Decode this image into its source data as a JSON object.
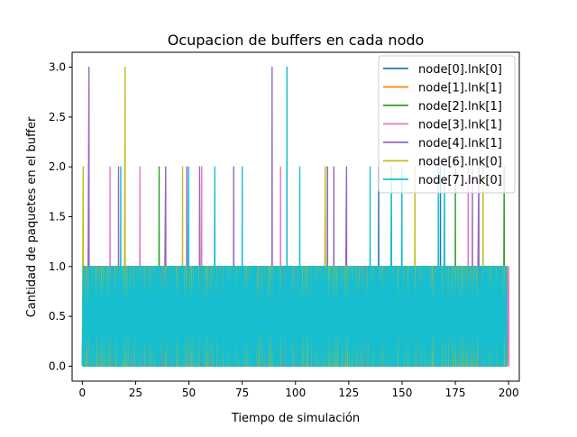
{
  "chart_data": {
    "type": "line",
    "title": "Ocupacion de buffers en cada nodo",
    "xlabel": "Tiempo de simulación",
    "ylabel": "Cantidad de paquetes en el buffer",
    "xlim": [
      -4.8,
      205
    ],
    "ylim": [
      -0.15,
      3.15
    ],
    "xticks": [
      0,
      25,
      50,
      75,
      100,
      125,
      150,
      175,
      200
    ],
    "xtick_labels": [
      "0",
      "25",
      "50",
      "75",
      "100",
      "125",
      "150",
      "175",
      "200"
    ],
    "yticks": [
      0.0,
      0.5,
      1.0,
      1.5,
      2.0,
      2.5,
      3.0
    ],
    "ytick_labels": [
      "0.0",
      "0.5",
      "1.0",
      "1.5",
      "2.0",
      "2.5",
      "3.0"
    ],
    "grid": false,
    "legend_position": "top-right",
    "value_range": [
      0,
      1
    ],
    "series": [
      {
        "name": "node[0].lnk[0]",
        "color": "#1f77b4",
        "x_end": 197,
        "peaks": [
          [
            139,
            2
          ],
          [
            168,
            2
          ]
        ]
      },
      {
        "name": "node[1].lnk[1]",
        "color": "#ff7f0e",
        "x_end": 200,
        "peaks": []
      },
      {
        "name": "node[2].lnk[1]",
        "color": "#2ca02c",
        "x_end": 199,
        "peaks": [
          [
            36,
            2
          ],
          [
            115,
            2
          ],
          [
            175,
            2
          ],
          [
            198,
            2
          ]
        ]
      },
      {
        "name": "node[3].lnk[1]",
        "color": "#e377c2",
        "x_end": 200,
        "peaks": [
          [
            13,
            2
          ],
          [
            27,
            2
          ],
          [
            56,
            2
          ],
          [
            93,
            2
          ],
          [
            181,
            2
          ]
        ]
      },
      {
        "name": "node[4].lnk[1]",
        "color": "#9467bd",
        "x_end": 199,
        "peaks": [
          [
            3,
            3
          ],
          [
            17,
            2
          ],
          [
            39,
            2
          ],
          [
            49,
            2
          ],
          [
            55,
            2
          ],
          [
            71,
            2
          ],
          [
            89,
            3
          ],
          [
            115,
            2
          ],
          [
            118,
            2
          ],
          [
            124,
            2
          ],
          [
            183,
            2
          ],
          [
            186,
            2
          ]
        ]
      },
      {
        "name": "node[6].lnk[0]",
        "color": "#bcbd22",
        "x_end": 198,
        "peaks": [
          [
            0.5,
            2
          ],
          [
            20,
            3
          ],
          [
            47,
            2
          ],
          [
            114,
            2
          ],
          [
            156,
            2
          ],
          [
            188,
            2
          ]
        ]
      },
      {
        "name": "node[7].lnk[0]",
        "color": "#17becf",
        "x_end": 199,
        "peaks": [
          [
            18,
            2
          ],
          [
            50,
            2
          ],
          [
            62,
            2
          ],
          [
            75,
            2
          ],
          [
            96,
            3
          ],
          [
            102,
            2
          ],
          [
            135,
            2
          ],
          [
            145,
            2
          ],
          [
            150,
            2
          ],
          [
            167,
            2
          ],
          [
            170,
            2
          ]
        ]
      }
    ]
  }
}
